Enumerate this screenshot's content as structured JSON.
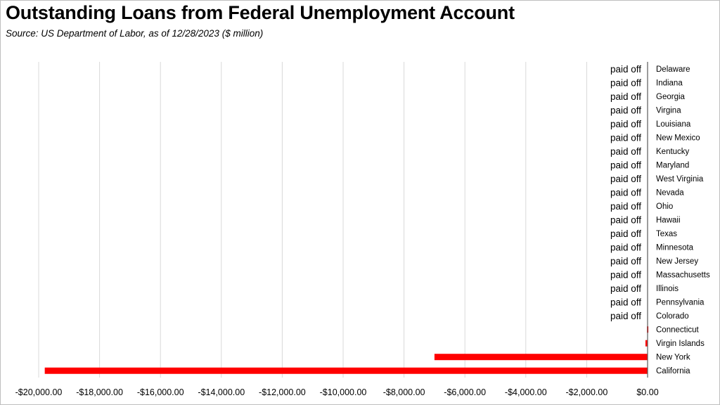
{
  "title": "Outstanding Loans from Federal Unemployment Account",
  "subtitle": "Source:  US Department of Labor, as of 12/28/2023  ($ million)",
  "colors": {
    "bar": "#ff0000",
    "grid": "#d9d9d9",
    "axis": "#595959"
  },
  "chart_data": {
    "type": "bar",
    "orientation": "horizontal",
    "categories": [
      "Delaware",
      "Indiana",
      "Georgia",
      "Virgina",
      "Louisiana",
      "New Mexico",
      "Kentucky",
      "Maryland",
      "West Virginia",
      "Nevada",
      "Ohio",
      "Hawaii",
      "Texas",
      "Minnesota",
      "New Jersey",
      "Massachusetts",
      "Illinois",
      "Pennsylvania",
      "Colorado",
      "Connecticut",
      "Virgin Islands",
      "New York",
      "California"
    ],
    "values": [
      0,
      0,
      0,
      0,
      0,
      0,
      0,
      0,
      0,
      0,
      0,
      0,
      0,
      0,
      0,
      0,
      0,
      0,
      0,
      -20,
      -70,
      -7000,
      -19800
    ],
    "data_labels": [
      "paid off",
      "paid off",
      "paid off",
      "paid off",
      "paid off",
      "paid off",
      "paid off",
      "paid off",
      "paid off",
      "paid off",
      "paid off",
      "paid off",
      "paid off",
      "paid off",
      "paid off",
      "paid off",
      "paid off",
      "paid off",
      "paid off",
      "",
      "",
      "",
      ""
    ],
    "xlim": [
      -20000,
      0
    ],
    "xticks": [
      -20000,
      -18000,
      -16000,
      -14000,
      -12000,
      -10000,
      -8000,
      -6000,
      -4000,
      -2000,
      0
    ],
    "xtick_labels": [
      "-$20,000.00",
      "-$18,000.00",
      "-$16,000.00",
      "-$14,000.00",
      "-$12,000.00",
      "-$10,000.00",
      "-$8,000.00",
      "-$6,000.00",
      "-$4,000.00",
      "-$2,000.00",
      "$0.00"
    ],
    "grid": "vertical",
    "legend": "none"
  }
}
